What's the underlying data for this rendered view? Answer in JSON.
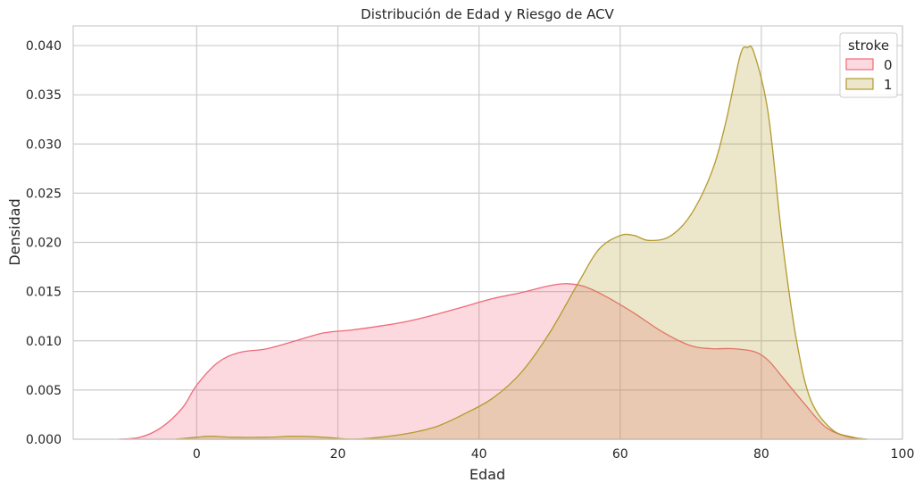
{
  "chart_data": {
    "type": "area",
    "title": "Distribución de Edad y Riesgo de ACV",
    "xlabel": "Edad",
    "ylabel": "Densidad",
    "xlim": [
      -17.5,
      100
    ],
    "ylim": [
      0,
      0.042
    ],
    "xticks": [
      0,
      20,
      40,
      60,
      80,
      100
    ],
    "xtick_labels": [
      "0",
      "20",
      "40",
      "60",
      "80",
      "100"
    ],
    "yticks": [
      0,
      0.005,
      0.01,
      0.015,
      0.02,
      0.025,
      0.03,
      0.035,
      0.04
    ],
    "ytick_labels": [
      "0.000",
      "0.005",
      "0.010",
      "0.015",
      "0.020",
      "0.025",
      "0.030",
      "0.035",
      "0.040"
    ],
    "grid": true,
    "legend": {
      "title": "stroke",
      "placement": "top-right"
    },
    "series": [
      {
        "name": "0",
        "color": "#f0697a",
        "fill": "#f7c5cf",
        "points": [
          [
            -11,
            0
          ],
          [
            -8,
            0.0002
          ],
          [
            -5,
            0.0012
          ],
          [
            -2,
            0.0032
          ],
          [
            0,
            0.0055
          ],
          [
            3,
            0.0078
          ],
          [
            6,
            0.0088
          ],
          [
            10,
            0.0092
          ],
          [
            14,
            0.01
          ],
          [
            18,
            0.0108
          ],
          [
            22,
            0.0111
          ],
          [
            26,
            0.0115
          ],
          [
            30,
            0.012
          ],
          [
            34,
            0.0127
          ],
          [
            38,
            0.0135
          ],
          [
            42,
            0.0143
          ],
          [
            46,
            0.0149
          ],
          [
            50,
            0.0156
          ],
          [
            52.5,
            0.0158
          ],
          [
            55,
            0.0155
          ],
          [
            58,
            0.0145
          ],
          [
            62,
            0.0128
          ],
          [
            66,
            0.0109
          ],
          [
            70,
            0.0095
          ],
          [
            73,
            0.0092
          ],
          [
            76,
            0.0092
          ],
          [
            79,
            0.0089
          ],
          [
            81,
            0.008
          ],
          [
            83,
            0.0063
          ],
          [
            86,
            0.0037
          ],
          [
            89,
            0.0013
          ],
          [
            92,
            0.0003
          ],
          [
            95,
            0
          ]
        ]
      },
      {
        "name": "1",
        "color": "#b39a2c",
        "fill": "#e8dec0",
        "points": [
          [
            -3,
            0
          ],
          [
            0,
            0.0002
          ],
          [
            2,
            0.0003
          ],
          [
            5,
            0.0002
          ],
          [
            10,
            0.0002
          ],
          [
            14,
            0.0003
          ],
          [
            18,
            0.0002
          ],
          [
            22,
            0
          ],
          [
            26,
            0.0002
          ],
          [
            30,
            0.0006
          ],
          [
            34,
            0.0013
          ],
          [
            38,
            0.0026
          ],
          [
            42,
            0.0042
          ],
          [
            46,
            0.0068
          ],
          [
            50,
            0.0108
          ],
          [
            54,
            0.0158
          ],
          [
            57,
            0.0193
          ],
          [
            60,
            0.0207
          ],
          [
            62,
            0.0207
          ],
          [
            64,
            0.0202
          ],
          [
            67,
            0.0206
          ],
          [
            70,
            0.0228
          ],
          [
            73,
            0.0272
          ],
          [
            75,
            0.0323
          ],
          [
            77,
            0.039
          ],
          [
            78,
            0.0398
          ],
          [
            79,
            0.0392
          ],
          [
            81,
            0.033
          ],
          [
            83,
            0.02
          ],
          [
            85,
            0.01
          ],
          [
            87,
            0.004
          ],
          [
            90,
            0.001
          ],
          [
            93,
            0.0002
          ],
          [
            95,
            0
          ]
        ]
      }
    ]
  }
}
